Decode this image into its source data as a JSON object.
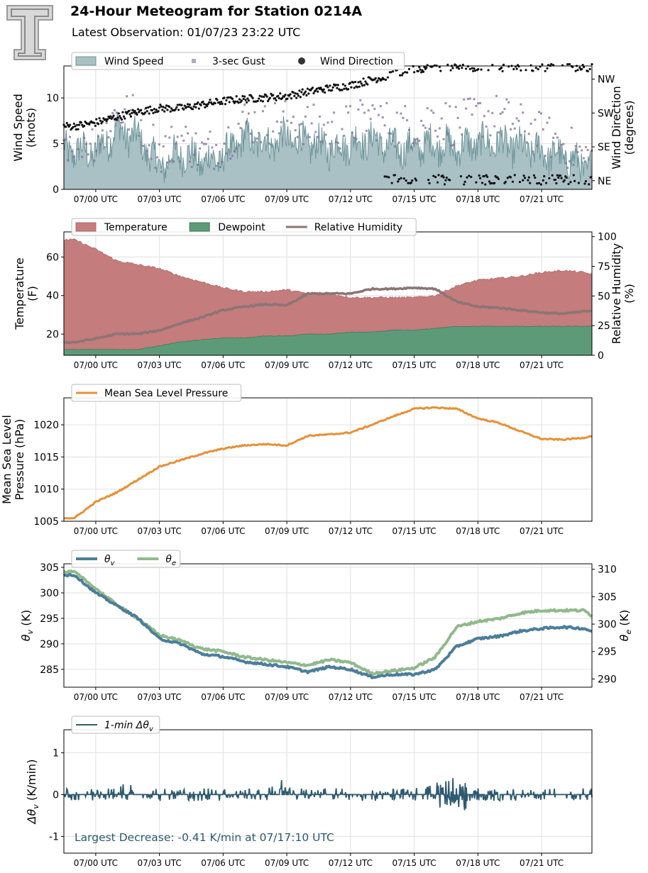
{
  "header": {
    "title": "24-Hour Meteogram for Station 0214A",
    "subtitle": "Latest Observation: 01/07/23 23:22 UTC"
  },
  "x_ticks": [
    "07/00 UTC",
    "07/03 UTC",
    "07/06 UTC",
    "07/09 UTC",
    "07/12 UTC",
    "07/15 UTC",
    "07/18 UTC",
    "07/21 UTC"
  ],
  "colors": {
    "wind_fill": "#a9c0c5",
    "wind_line": "#6f969b",
    "gust": "#7f6e93",
    "wind_dir": "#111111",
    "temperature": "#c47c7c",
    "dewpoint": "#5d9b78",
    "rh": "#8c7474",
    "mslp": "#e69138",
    "theta_v": "#4b7e99",
    "theta_e": "#91b98c",
    "dtheta": "#2e5a70"
  },
  "chart_data": [
    {
      "type": "area",
      "id": "wind",
      "ylabel": "Wind Speed\n(knots)",
      "ylabel_right": "Wind Direction\n(degrees)",
      "ylim": [
        0,
        13.5
      ],
      "yticks": [
        0,
        5,
        10
      ],
      "right_ticks": [
        "NE",
        "SE",
        "SW",
        "NW"
      ],
      "legend": [
        "Wind Speed",
        "3-sec Gust",
        "Wind Direction"
      ],
      "x_hours": [
        -1,
        0,
        1,
        2,
        3,
        4,
        5,
        6,
        7,
        8,
        9,
        10,
        11,
        12,
        13,
        14,
        15,
        16,
        17,
        18,
        19,
        20,
        21,
        22,
        23,
        23.37
      ],
      "series": [
        {
          "name": "Wind Speed",
          "values": [
            4.2,
            4.0,
            6.5,
            5.5,
            2.5,
            4.0,
            3.0,
            3.5,
            5.5,
            5.0,
            5.5,
            5.0,
            4.5,
            5.0,
            5.5,
            4.5,
            4.5,
            5.0,
            4.5,
            5.0,
            5.0,
            4.5,
            4.0,
            3.5,
            2.5,
            2.5
          ]
        },
        {
          "name": "3-sec Gust",
          "values": [
            5.5,
            5.5,
            8.5,
            8.0,
            4.0,
            5.5,
            4.0,
            5.0,
            7.5,
            7.0,
            8.0,
            7.0,
            6.5,
            7.0,
            8.0,
            7.0,
            7.0,
            8.0,
            7.0,
            8.0,
            8.0,
            7.0,
            6.0,
            5.0,
            3.5,
            3.5
          ]
        },
        {
          "name": "Wind Direction",
          "values": [
            100,
            105,
            113,
            120,
            125,
            125,
            130,
            135,
            138,
            140,
            142,
            148,
            153,
            157,
            165,
            172,
            180,
            182,
            183,
            182,
            182,
            182,
            182,
            182,
            182,
            182
          ]
        }
      ]
    },
    {
      "type": "area",
      "id": "temp",
      "ylabel": "Temperature\n(F)",
      "ylabel_right": "Relative Humidity\n(%)",
      "ylim": [
        9,
        73
      ],
      "yticks": [
        20,
        40,
        60
      ],
      "ylim_right": [
        0,
        104
      ],
      "right_ticks": [
        0,
        25,
        50,
        75,
        100
      ],
      "legend": [
        "Temperature",
        "Dewpoint",
        "Relative Humidity"
      ],
      "x_hours": [
        -1,
        0,
        1,
        2,
        3,
        4,
        5,
        6,
        7,
        8,
        9,
        10,
        11,
        12,
        13,
        14,
        15,
        16,
        17,
        18,
        19,
        20,
        21,
        22,
        23,
        23.37
      ],
      "series": [
        {
          "name": "Temperature",
          "values": [
            69,
            64,
            58,
            56,
            54,
            50,
            47,
            44,
            42,
            42,
            43,
            41,
            41,
            39,
            39,
            39,
            39,
            40,
            45,
            48,
            49,
            50,
            52,
            53,
            52,
            51
          ]
        },
        {
          "name": "Dewpoint",
          "values": [
            12,
            12,
            12,
            12,
            14,
            16,
            17,
            18,
            18,
            19,
            19,
            20,
            20,
            21,
            21,
            22,
            22,
            23,
            24,
            24,
            24,
            24,
            24,
            24,
            24,
            24
          ]
        },
        {
          "name": "Relative Humidity",
          "values": [
            11,
            14,
            18,
            18,
            21,
            27,
            32,
            38,
            41,
            43,
            42,
            52,
            52,
            52,
            56,
            56,
            57,
            56,
            45,
            41,
            40,
            38,
            36,
            35,
            37,
            37
          ]
        }
      ]
    },
    {
      "type": "line",
      "id": "mslp",
      "ylabel": "Mean Sea Level\nPressure (hPa)",
      "ylim": [
        1005,
        1024.2
      ],
      "yticks": [
        1005,
        1010,
        1015,
        1020
      ],
      "legend": [
        "Mean Sea Level Pressure"
      ],
      "x_hours": [
        -1,
        0,
        1,
        2,
        3,
        4,
        5,
        6,
        7,
        8,
        9,
        10,
        11,
        12,
        13,
        14,
        15,
        16,
        17,
        18,
        19,
        20,
        21,
        22,
        23,
        23.37
      ],
      "series": [
        {
          "name": "Mean Sea Level Pressure",
          "values": [
            1005.5,
            1008.0,
            1009.5,
            1011.5,
            1013.5,
            1014.5,
            1015.5,
            1016.3,
            1016.8,
            1017.0,
            1016.8,
            1018.3,
            1018.5,
            1018.8,
            1020.0,
            1021.3,
            1022.5,
            1022.7,
            1022.5,
            1021.0,
            1020.3,
            1019.0,
            1017.8,
            1017.7,
            1018.0,
            1018.3
          ]
        }
      ]
    },
    {
      "type": "line",
      "id": "theta",
      "ylabel": "θv (K)",
      "ylabel_right": "θe (K)",
      "ylim": [
        281.5,
        305.7
      ],
      "yticks": [
        285,
        290,
        295,
        300,
        305
      ],
      "ylim_right": [
        288.5,
        311
      ],
      "right_ticks": [
        290,
        295,
        300,
        305,
        310
      ],
      "legend": [
        "θv",
        "θe"
      ],
      "x_hours": [
        -1,
        0,
        1,
        2,
        3,
        4,
        5,
        6,
        7,
        8,
        9,
        10,
        11,
        12,
        13,
        14,
        15,
        16,
        17,
        18,
        19,
        20,
        21,
        22,
        23,
        23.37
      ],
      "series": [
        {
          "name": "θv",
          "values": [
            303.5,
            300.0,
            297.5,
            295.0,
            291.0,
            290.0,
            288.0,
            287.5,
            286.5,
            286.0,
            285.5,
            284.5,
            285.5,
            285.0,
            283.5,
            284.0,
            284.0,
            285.0,
            289.5,
            291.0,
            291.5,
            292.5,
            293.0,
            293.3,
            293.0,
            292.5
          ]
        },
        {
          "name": "θe",
          "values": [
            309.5,
            306.5,
            303.5,
            301.0,
            298.0,
            297.0,
            295.5,
            295.0,
            294.0,
            293.5,
            293.0,
            292.5,
            293.5,
            293.0,
            291.0,
            291.5,
            292.0,
            294.0,
            299.5,
            300.5,
            301.0,
            302.0,
            302.5,
            302.5,
            302.5,
            301.5
          ]
        }
      ]
    },
    {
      "type": "line",
      "id": "dtheta",
      "ylabel": "Δθv (K/min)",
      "ylim": [
        -1.4,
        1.55
      ],
      "yticks": [
        -1,
        0,
        1
      ],
      "legend": [
        "1-min Δθv"
      ],
      "annotation": "Largest Decrease: -0.41 K/min at 07/17:10 UTC",
      "series": [
        {
          "name": "1-min Δθv",
          "values": [
            -0.1,
            0.0,
            0.1,
            -0.1,
            0.3,
            0.0,
            -0.1,
            0.0,
            0.1,
            -0.2,
            0.0,
            0.0,
            -0.1,
            0.1,
            0.0,
            0.2,
            0.4,
            0.0,
            -0.1,
            0.1,
            0.0,
            -0.1,
            0.0,
            0.1,
            -0.1,
            0.0,
            0.2,
            0.5,
            -0.41,
            0.3,
            -0.2,
            0.1,
            0.0,
            -0.1,
            0.1,
            0.0,
            0.0,
            -0.1,
            0.0,
            0.0
          ]
        }
      ]
    }
  ]
}
